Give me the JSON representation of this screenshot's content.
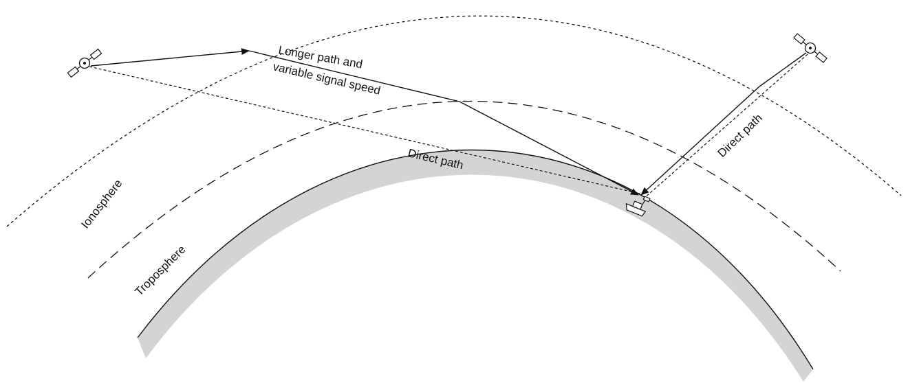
{
  "labels": {
    "longer_path_line1": "Longer path and",
    "longer_path_line2": "variable signal speed",
    "direct_path_left": "Direct path",
    "direct_path_right": "Direct path",
    "ionosphere": "Ionosphere",
    "troposphere": "Troposphere"
  },
  "colors": {
    "ink": "#111111",
    "earth_band": "#d4d4d4",
    "background": "#ffffff"
  },
  "icons": {
    "left_satellite": "satellite-icon",
    "right_satellite": "satellite-icon",
    "receiver": "ship-receiver-icon"
  }
}
